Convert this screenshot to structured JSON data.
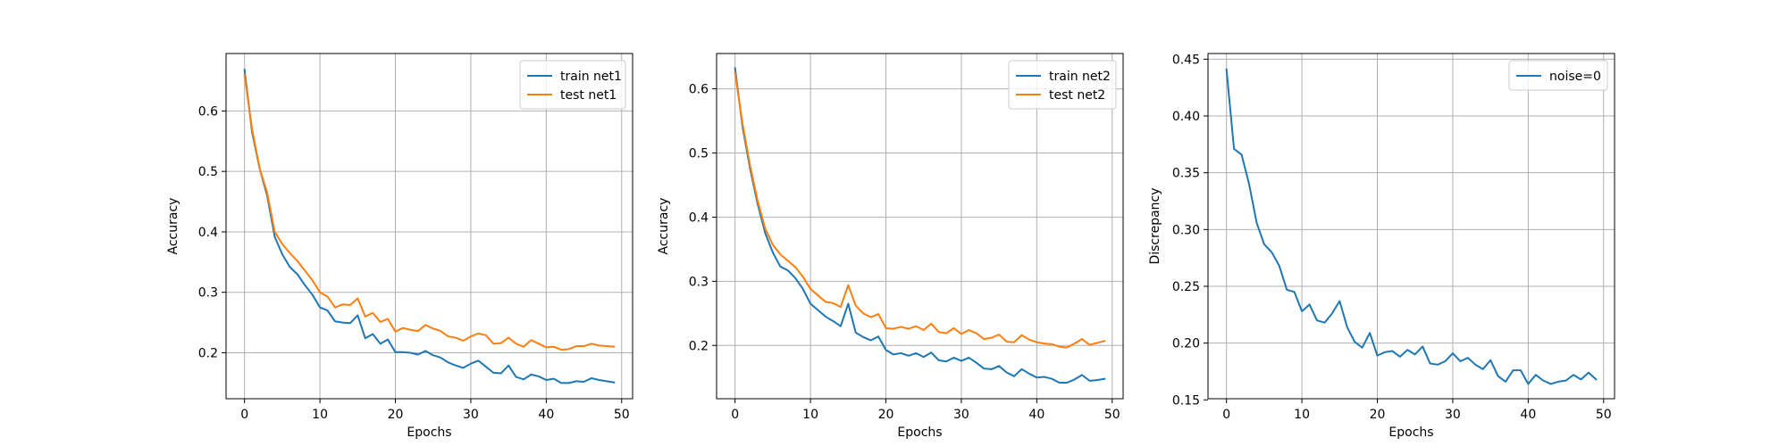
{
  "chart_data": [
    {
      "type": "line",
      "xlabel": "Epochs",
      "ylabel": "Accuracy",
      "xlim": [
        -2.45,
        51.45
      ],
      "ylim": [
        0.124,
        0.695
      ],
      "xticks": [
        0,
        10,
        20,
        30,
        40,
        50
      ],
      "yticks": [
        0.2,
        0.3,
        0.4,
        0.5,
        0.6
      ],
      "grid": true,
      "legend": "top-right",
      "series": [
        {
          "name": "train net1",
          "color": "#1f77b4",
          "x": [
            0,
            1,
            2,
            3,
            4,
            5,
            6,
            7,
            8,
            9,
            10,
            11,
            12,
            13,
            14,
            15,
            16,
            17,
            18,
            19,
            20,
            21,
            22,
            23,
            24,
            25,
            26,
            27,
            28,
            29,
            30,
            31,
            32,
            33,
            34,
            35,
            36,
            37,
            38,
            39,
            40,
            41,
            42,
            43,
            44,
            45,
            46,
            47,
            48,
            49
          ],
          "values": [
            0.668,
            0.565,
            0.505,
            0.46,
            0.392,
            0.363,
            0.342,
            0.33,
            0.312,
            0.296,
            0.275,
            0.27,
            0.252,
            0.25,
            0.249,
            0.262,
            0.224,
            0.231,
            0.215,
            0.222,
            0.201,
            0.201,
            0.2,
            0.197,
            0.203,
            0.196,
            0.192,
            0.184,
            0.179,
            0.175,
            0.182,
            0.187,
            0.177,
            0.167,
            0.166,
            0.179,
            0.16,
            0.156,
            0.164,
            0.161,
            0.155,
            0.157,
            0.15,
            0.15,
            0.153,
            0.152,
            0.158,
            0.155,
            0.153,
            0.151
          ]
        },
        {
          "name": "test net1",
          "color": "#ff7f0e",
          "x": [
            0,
            1,
            2,
            3,
            4,
            5,
            6,
            7,
            8,
            9,
            10,
            11,
            12,
            13,
            14,
            15,
            16,
            17,
            18,
            19,
            20,
            21,
            22,
            23,
            24,
            25,
            26,
            27,
            28,
            29,
            30,
            31,
            32,
            33,
            34,
            35,
            36,
            37,
            38,
            39,
            40,
            41,
            42,
            43,
            44,
            45,
            46,
            47,
            48,
            49
          ],
          "values": [
            0.66,
            0.57,
            0.505,
            0.465,
            0.4,
            0.38,
            0.365,
            0.352,
            0.336,
            0.32,
            0.3,
            0.293,
            0.275,
            0.28,
            0.279,
            0.29,
            0.26,
            0.266,
            0.251,
            0.256,
            0.235,
            0.241,
            0.238,
            0.236,
            0.246,
            0.24,
            0.236,
            0.227,
            0.225,
            0.22,
            0.227,
            0.232,
            0.229,
            0.215,
            0.216,
            0.225,
            0.215,
            0.21,
            0.221,
            0.215,
            0.209,
            0.21,
            0.205,
            0.206,
            0.211,
            0.211,
            0.215,
            0.212,
            0.211,
            0.21
          ]
        }
      ]
    },
    {
      "type": "line",
      "xlabel": "Epochs",
      "ylabel": "Accuracy",
      "xlim": [
        -2.45,
        51.45
      ],
      "ylim": [
        0.117,
        0.655
      ],
      "xticks": [
        0,
        10,
        20,
        30,
        40,
        50
      ],
      "yticks": [
        0.2,
        0.3,
        0.4,
        0.5,
        0.6
      ],
      "grid": true,
      "legend": "top-right",
      "series": [
        {
          "name": "train net2",
          "color": "#1f77b4",
          "x": [
            0,
            1,
            2,
            3,
            4,
            5,
            6,
            7,
            8,
            9,
            10,
            11,
            12,
            13,
            14,
            15,
            16,
            17,
            18,
            19,
            20,
            21,
            22,
            23,
            24,
            25,
            26,
            27,
            28,
            29,
            30,
            31,
            32,
            33,
            34,
            35,
            36,
            37,
            38,
            39,
            40,
            41,
            42,
            43,
            44,
            45,
            46,
            47,
            48,
            49
          ],
          "values": [
            0.632,
            0.54,
            0.475,
            0.42,
            0.375,
            0.345,
            0.323,
            0.317,
            0.305,
            0.288,
            0.265,
            0.255,
            0.245,
            0.238,
            0.23,
            0.265,
            0.22,
            0.213,
            0.208,
            0.214,
            0.193,
            0.186,
            0.188,
            0.184,
            0.188,
            0.182,
            0.189,
            0.177,
            0.175,
            0.181,
            0.176,
            0.181,
            0.173,
            0.164,
            0.163,
            0.168,
            0.158,
            0.152,
            0.163,
            0.156,
            0.15,
            0.151,
            0.148,
            0.142,
            0.142,
            0.147,
            0.154,
            0.145,
            0.146,
            0.148
          ]
        },
        {
          "name": "test net2",
          "color": "#ff7f0e",
          "x": [
            0,
            1,
            2,
            3,
            4,
            5,
            6,
            7,
            8,
            9,
            10,
            11,
            12,
            13,
            14,
            15,
            16,
            17,
            18,
            19,
            20,
            21,
            22,
            23,
            24,
            25,
            26,
            27,
            28,
            29,
            30,
            31,
            32,
            33,
            34,
            35,
            36,
            37,
            38,
            39,
            40,
            41,
            42,
            43,
            44,
            45,
            46,
            47,
            48,
            49
          ],
          "values": [
            0.625,
            0.545,
            0.48,
            0.425,
            0.382,
            0.357,
            0.342,
            0.332,
            0.322,
            0.307,
            0.288,
            0.278,
            0.268,
            0.266,
            0.26,
            0.294,
            0.262,
            0.25,
            0.244,
            0.249,
            0.227,
            0.226,
            0.229,
            0.226,
            0.23,
            0.224,
            0.234,
            0.221,
            0.219,
            0.227,
            0.218,
            0.224,
            0.219,
            0.21,
            0.212,
            0.217,
            0.206,
            0.205,
            0.216,
            0.209,
            0.205,
            0.203,
            0.202,
            0.198,
            0.197,
            0.203,
            0.21,
            0.201,
            0.204,
            0.207
          ]
        }
      ]
    },
    {
      "type": "line",
      "xlabel": "Epochs",
      "ylabel": "Discrepancy",
      "xlim": [
        -2.45,
        51.45
      ],
      "ylim": [
        0.151,
        0.455
      ],
      "xticks": [
        0,
        10,
        20,
        30,
        40,
        50
      ],
      "yticks": [
        0.15,
        0.2,
        0.25,
        0.3,
        0.35,
        0.4,
        0.45
      ],
      "grid": true,
      "legend": "top-right",
      "series": [
        {
          "name": "noise=0",
          "color": "#1f77b4",
          "x": [
            0,
            1,
            2,
            3,
            4,
            5,
            6,
            7,
            8,
            9,
            10,
            11,
            12,
            13,
            14,
            15,
            16,
            17,
            18,
            19,
            20,
            21,
            22,
            23,
            24,
            25,
            26,
            27,
            28,
            29,
            30,
            31,
            32,
            33,
            34,
            35,
            36,
            37,
            38,
            39,
            40,
            41,
            42,
            43,
            44,
            45,
            46,
            47,
            48,
            49
          ],
          "values": [
            0.441,
            0.371,
            0.366,
            0.34,
            0.306,
            0.287,
            0.28,
            0.268,
            0.247,
            0.245,
            0.228,
            0.234,
            0.22,
            0.218,
            0.226,
            0.237,
            0.214,
            0.201,
            0.196,
            0.209,
            0.189,
            0.192,
            0.193,
            0.188,
            0.194,
            0.19,
            0.197,
            0.182,
            0.181,
            0.184,
            0.191,
            0.184,
            0.187,
            0.181,
            0.177,
            0.185,
            0.171,
            0.166,
            0.176,
            0.176,
            0.164,
            0.172,
            0.167,
            0.164,
            0.166,
            0.167,
            0.172,
            0.168,
            0.174,
            0.168
          ]
        }
      ]
    }
  ]
}
